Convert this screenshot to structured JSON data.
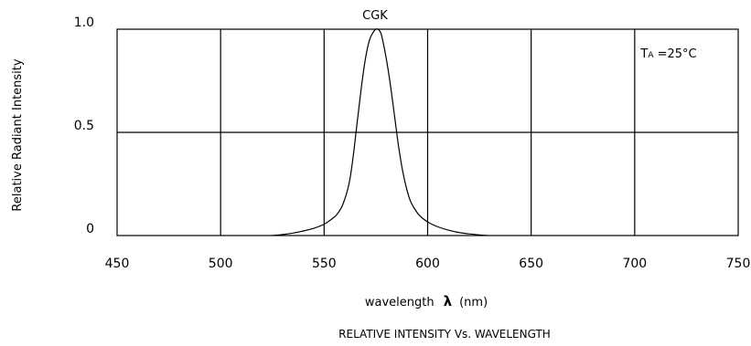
{
  "chart_data": {
    "type": "line",
    "title": "CGK",
    "caption": "RELATIVE  INTENSITY  Vs.  WAVELENGTH",
    "xlabel_prefix": "wavelength",
    "xlabel_symbol": "λ",
    "xlabel_unit": "(nm)",
    "ylabel": "Relative  Radiant  Intensity",
    "annotation_main": "T",
    "annotation_sub": "A",
    "annotation_rest": " =25°C",
    "xlim": [
      450,
      750
    ],
    "ylim": [
      0,
      1.0
    ],
    "grid": true,
    "x_ticks": [
      {
        "value": 450,
        "label": "450"
      },
      {
        "value": 500,
        "label": "500"
      },
      {
        "value": 550,
        "label": "550"
      },
      {
        "value": 600,
        "label": "600"
      },
      {
        "value": 650,
        "label": "650"
      },
      {
        "value": 700,
        "label": "700"
      },
      {
        "value": 750,
        "label": "750"
      }
    ],
    "y_ticks": [
      {
        "value": 0,
        "label": "0"
      },
      {
        "value": 0.5,
        "label": "0.5"
      },
      {
        "value": 1.0,
        "label": "1.0"
      }
    ],
    "series": [
      {
        "color": "#000000",
        "x": [
          525,
          530,
          535,
          540,
          545,
          550,
          553,
          556,
          559,
          562,
          564,
          566,
          568,
          570,
          572,
          574,
          575,
          576,
          577,
          578,
          580,
          582,
          584,
          586,
          588,
          590,
          592,
          595,
          598,
          601,
          605,
          610,
          615,
          620,
          625,
          629
        ],
        "y": [
          0.0,
          0.005,
          0.012,
          0.022,
          0.035,
          0.055,
          0.075,
          0.1,
          0.15,
          0.25,
          0.38,
          0.55,
          0.72,
          0.86,
          0.95,
          0.99,
          1.0,
          1.0,
          0.99,
          0.96,
          0.86,
          0.73,
          0.58,
          0.43,
          0.31,
          0.22,
          0.16,
          0.11,
          0.08,
          0.06,
          0.042,
          0.026,
          0.015,
          0.008,
          0.003,
          0.0
        ]
      }
    ]
  }
}
